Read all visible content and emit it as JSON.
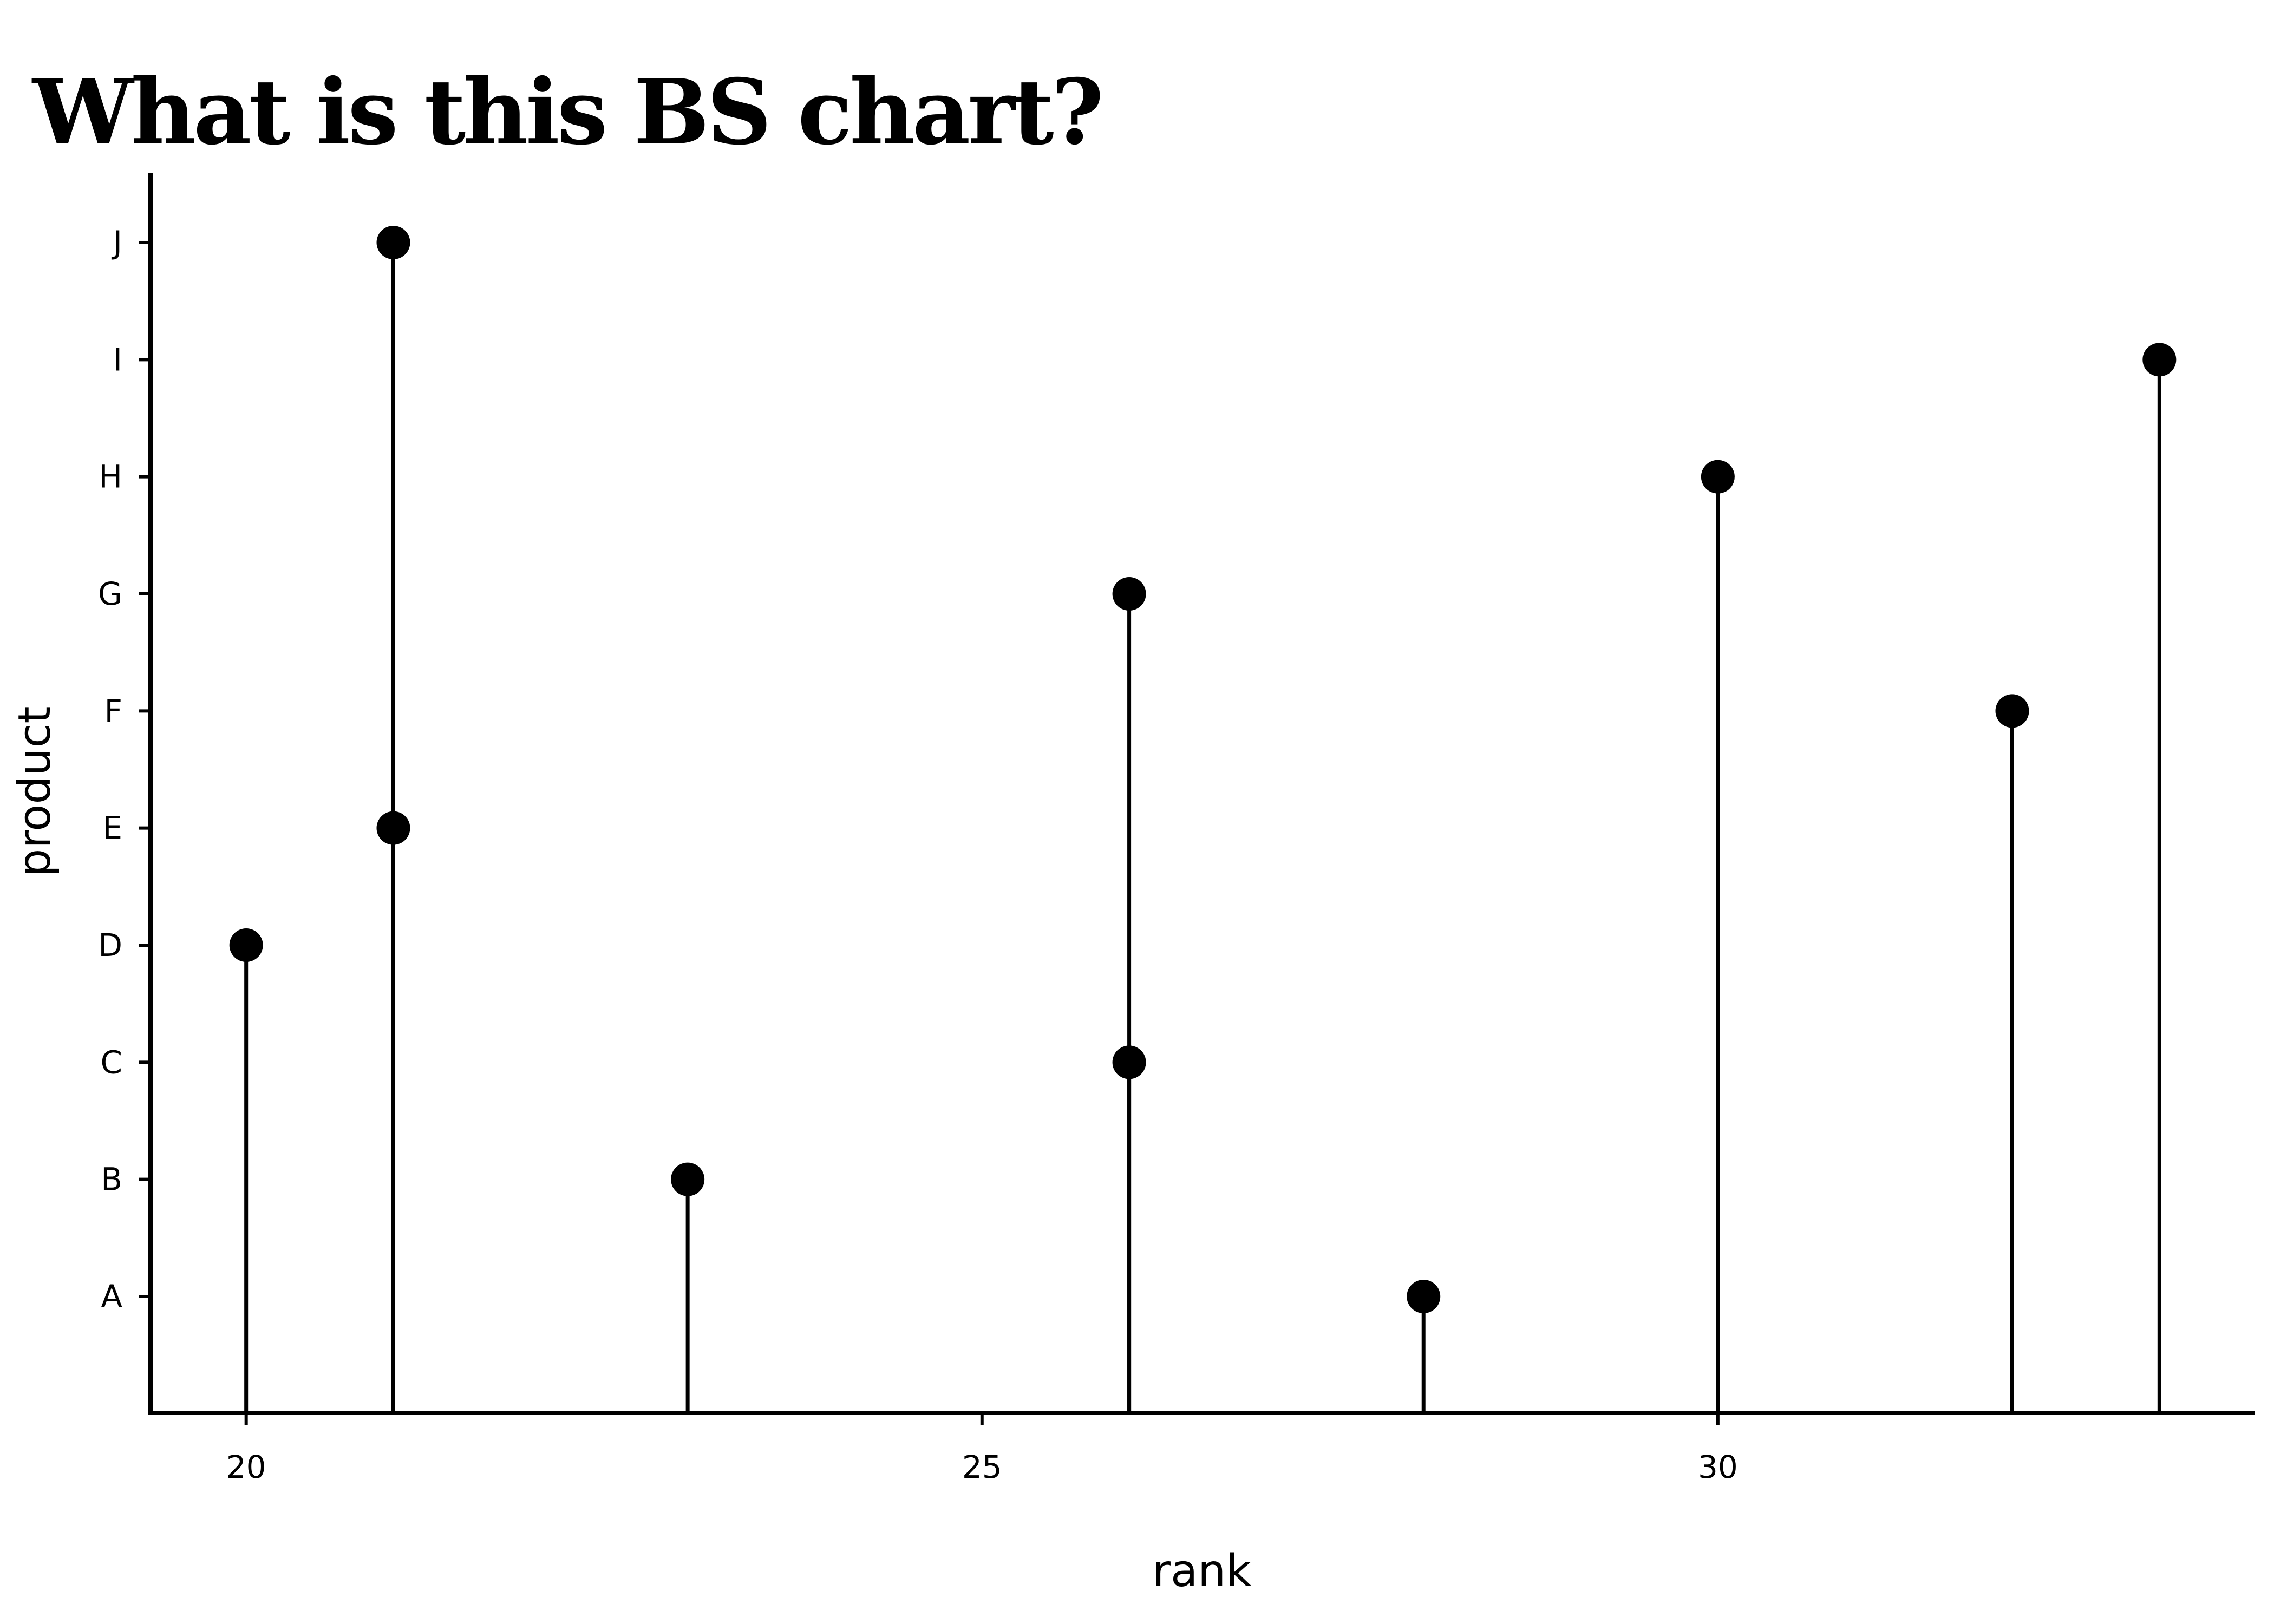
{
  "chart_data": {
    "type": "scatter",
    "style": "lollipop",
    "title": "What is this BS chart?",
    "xlabel": "rank",
    "ylabel": "product",
    "x_ticks": [
      20,
      25,
      30
    ],
    "y_categories": [
      "A",
      "B",
      "C",
      "D",
      "E",
      "F",
      "G",
      "H",
      "I",
      "J"
    ],
    "xlim": [
      19.35,
      33.65
    ],
    "grid": false,
    "legend": "none",
    "points": [
      {
        "product": "A",
        "rank": 28
      },
      {
        "product": "B",
        "rank": 23
      },
      {
        "product": "C",
        "rank": 26
      },
      {
        "product": "D",
        "rank": 20
      },
      {
        "product": "E",
        "rank": 21
      },
      {
        "product": "F",
        "rank": 32
      },
      {
        "product": "G",
        "rank": 26
      },
      {
        "product": "H",
        "rank": 30
      },
      {
        "product": "I",
        "rank": 33
      },
      {
        "product": "J",
        "rank": 21
      }
    ],
    "colors": {
      "mark": "#000000",
      "axis": "#000000",
      "background": "#ffffff"
    }
  }
}
